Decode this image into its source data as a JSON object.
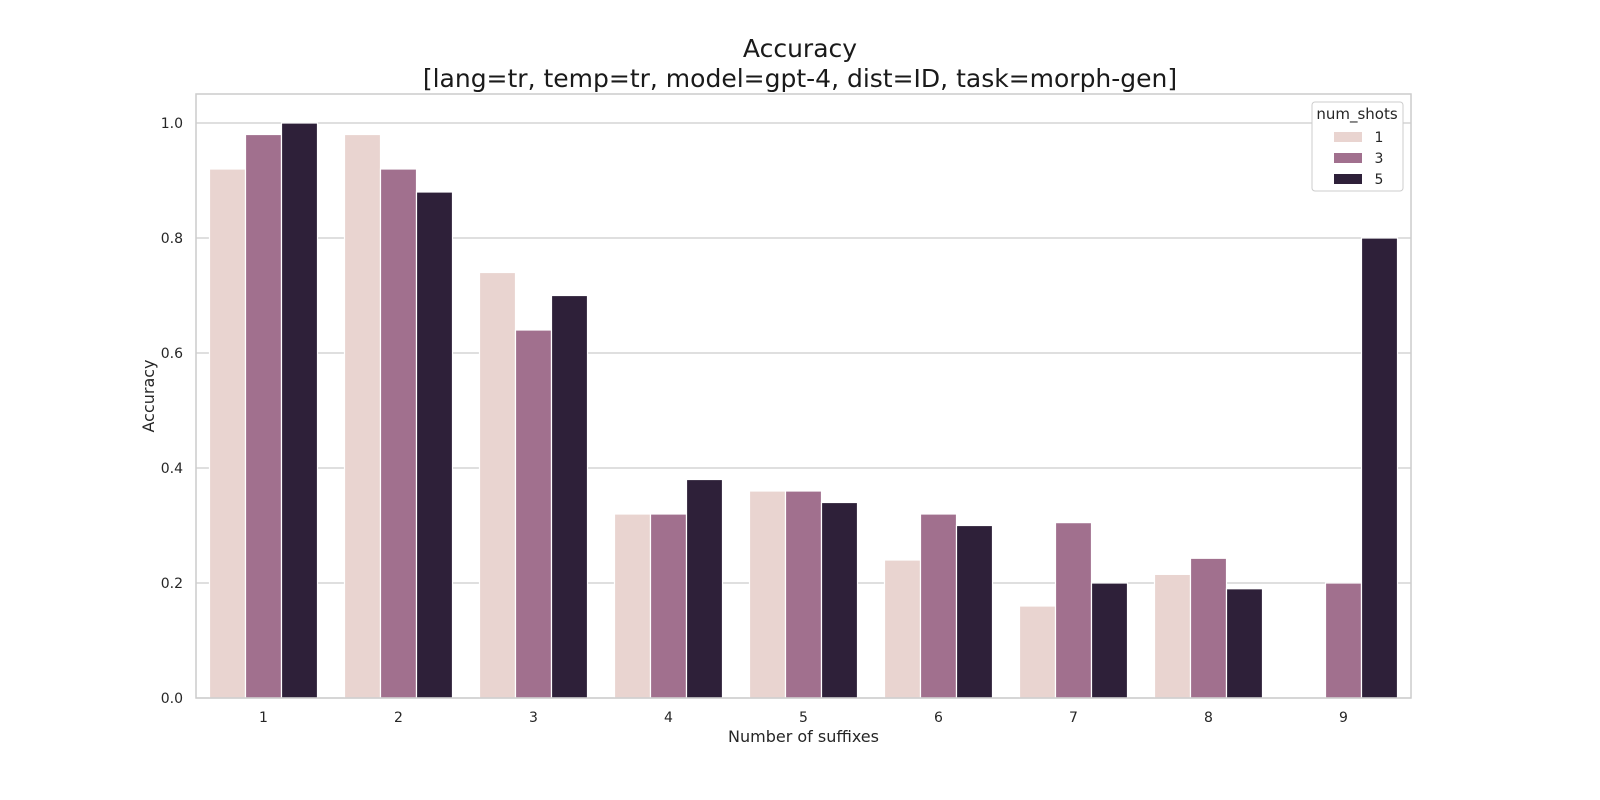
{
  "chart_data": {
    "type": "bar",
    "title": "Accuracy",
    "subtitle": "[lang=tr, temp=tr, model=gpt-4, dist=ID, task=morph-gen]",
    "xlabel": "Number of suffixes",
    "ylabel": "Accuracy",
    "categories": [
      "1",
      "2",
      "3",
      "4",
      "5",
      "6",
      "7",
      "8",
      "9"
    ],
    "ylim": [
      0,
      1.05
    ],
    "yticks": [
      "0.0",
      "0.2",
      "0.4",
      "0.6",
      "0.8",
      "1.0"
    ],
    "grid": "horizontal",
    "legend": {
      "title": "num_shots",
      "placement": "top-right"
    },
    "series": [
      {
        "name": "1",
        "color": "#e9d4d0",
        "values": [
          0.92,
          0.98,
          0.74,
          0.32,
          0.36,
          0.24,
          0.16,
          0.215,
          null
        ]
      },
      {
        "name": "3",
        "color": "#a1708e",
        "values": [
          0.98,
          0.92,
          0.64,
          0.32,
          0.36,
          0.32,
          0.305,
          0.243,
          0.2
        ]
      },
      {
        "name": "5",
        "color": "#2e2039",
        "values": [
          1.0,
          0.88,
          0.7,
          0.38,
          0.34,
          0.3,
          0.2,
          0.19,
          0.8
        ]
      }
    ]
  }
}
